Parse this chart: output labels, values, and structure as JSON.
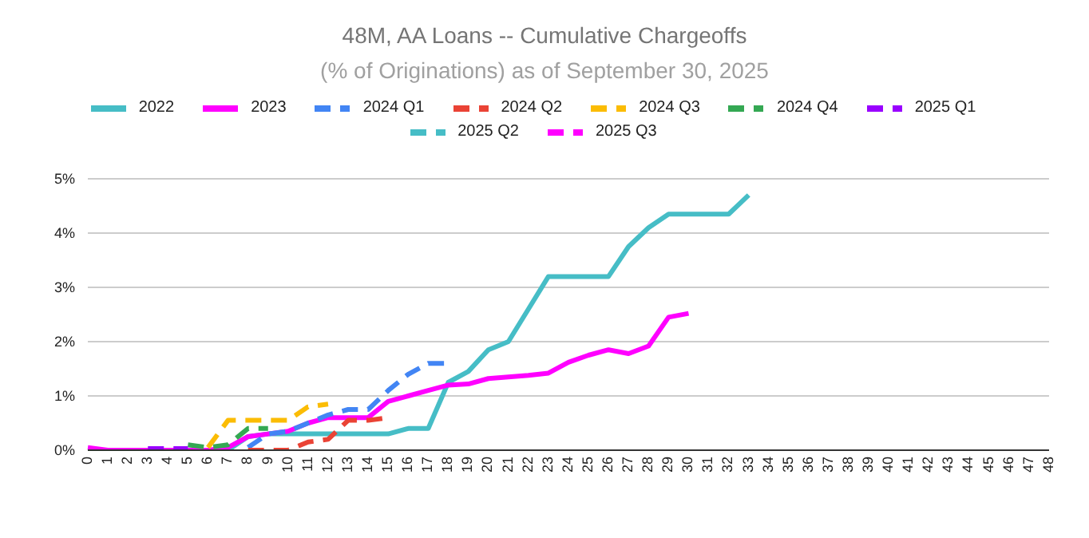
{
  "chart_data": {
    "type": "line",
    "title": "48M, AA Loans -- Cumulative Chargeoffs",
    "subtitle": "(% of Originations) as of September 30, 2025",
    "categories": [
      "0",
      "1",
      "2",
      "3",
      "4",
      "5",
      "6",
      "7",
      "8",
      "9",
      "10",
      "11",
      "12",
      "13",
      "14",
      "15",
      "16",
      "17",
      "18",
      "19",
      "20",
      "21",
      "22",
      "23",
      "24",
      "25",
      "26",
      "27",
      "28",
      "29",
      "30",
      "31",
      "32",
      "33",
      "34",
      "35",
      "36",
      "37",
      "38",
      "39",
      "40",
      "41",
      "42",
      "43",
      "44",
      "45",
      "46",
      "47",
      "48"
    ],
    "ylim": [
      0,
      5
    ],
    "yticks": [
      {
        "value": 0,
        "label": "0%"
      },
      {
        "value": 1,
        "label": "1%"
      },
      {
        "value": 2,
        "label": "2%"
      },
      {
        "value": 3,
        "label": "3%"
      },
      {
        "value": 4,
        "label": "4%"
      },
      {
        "value": 5,
        "label": "5%"
      }
    ],
    "grid": "y",
    "legend": "top",
    "marker": "none",
    "series": [
      {
        "name": "2022",
        "color": "#46bdc6",
        "line_style": "solid",
        "values": [
          null,
          null,
          null,
          null,
          null,
          null,
          null,
          0,
          0.25,
          0.3,
          0.3,
          0.3,
          0.3,
          0.3,
          0.3,
          0.3,
          0.4,
          0.4,
          1.25,
          1.45,
          1.85,
          2.0,
          2.6,
          3.2,
          3.2,
          3.2,
          3.2,
          3.75,
          4.1,
          4.35,
          4.35,
          4.35,
          4.35,
          4.7,
          null,
          null,
          null,
          null,
          null,
          null,
          null,
          null,
          null,
          null,
          null,
          null,
          null,
          null,
          null
        ]
      },
      {
        "name": "2023",
        "color": "#ff00ff",
        "line_style": "solid",
        "values": [
          0.05,
          0,
          0,
          0,
          0,
          0,
          0,
          0.05,
          0.25,
          0.3,
          0.35,
          0.5,
          0.6,
          0.6,
          0.6,
          0.9,
          1.0,
          1.1,
          1.2,
          1.22,
          1.32,
          1.35,
          1.38,
          1.42,
          1.62,
          1.75,
          1.85,
          1.78,
          1.92,
          2.45,
          2.52,
          null,
          null,
          null,
          null,
          null,
          null,
          null,
          null,
          null,
          null,
          null,
          null,
          null,
          null,
          null,
          null,
          null,
          null
        ]
      },
      {
        "name": "2024 Q1",
        "color": "#4285f4",
        "line_style": "dashed",
        "values": [
          null,
          null,
          null,
          null,
          null,
          null,
          null,
          null,
          0.05,
          0.3,
          0.35,
          0.5,
          0.65,
          0.75,
          0.75,
          1.1,
          1.4,
          1.6,
          1.6,
          null,
          null,
          null,
          null,
          null,
          null,
          null,
          null,
          null,
          null,
          null,
          null,
          null,
          null,
          null,
          null,
          null,
          null,
          null,
          null,
          null,
          null,
          null,
          null,
          null,
          null,
          null,
          null,
          null,
          null
        ]
      },
      {
        "name": "2024 Q2",
        "color": "#ea4335",
        "line_style": "dashed",
        "values": [
          null,
          null,
          null,
          null,
          null,
          null,
          null,
          null,
          0,
          0,
          0,
          0.15,
          0.2,
          0.55,
          0.55,
          0.6,
          null,
          null,
          null,
          null,
          null,
          null,
          null,
          null,
          null,
          null,
          null,
          null,
          null,
          null,
          null,
          null,
          null,
          null,
          null,
          null,
          null,
          null,
          null,
          null,
          null,
          null,
          null,
          null,
          null,
          null,
          null,
          null,
          null
        ]
      },
      {
        "name": "2024 Q3",
        "color": "#fbbc04",
        "line_style": "dashed",
        "values": [
          null,
          null,
          null,
          null,
          null,
          null,
          0.05,
          0.55,
          0.55,
          0.55,
          0.55,
          0.8,
          0.85,
          null,
          null,
          null,
          null,
          null,
          null,
          null,
          null,
          null,
          null,
          null,
          null,
          null,
          null,
          null,
          null,
          null,
          null,
          null,
          null,
          null,
          null,
          null,
          null,
          null,
          null,
          null,
          null,
          null,
          null,
          null,
          null,
          null,
          null,
          null,
          null
        ]
      },
      {
        "name": "2024 Q4",
        "color": "#34a853",
        "line_style": "dashed",
        "values": [
          null,
          null,
          null,
          null,
          null,
          0.1,
          0.05,
          0.1,
          0.4,
          0.4,
          null,
          null,
          null,
          null,
          null,
          null,
          null,
          null,
          null,
          null,
          null,
          null,
          null,
          null,
          null,
          null,
          null,
          null,
          null,
          null,
          null,
          null,
          null,
          null,
          null,
          null,
          null,
          null,
          null,
          null,
          null,
          null,
          null,
          null,
          null,
          null,
          null,
          null,
          null
        ]
      },
      {
        "name": "2025 Q1",
        "color": "#9900ff",
        "line_style": "dashed",
        "values": [
          null,
          null,
          null,
          0.03,
          0.03,
          0.03,
          null,
          null,
          null,
          null,
          null,
          null,
          null,
          null,
          null,
          null,
          null,
          null,
          null,
          null,
          null,
          null,
          null,
          null,
          null,
          null,
          null,
          null,
          null,
          null,
          null,
          null,
          null,
          null,
          null,
          null,
          null,
          null,
          null,
          null,
          null,
          null,
          null,
          null,
          null,
          null,
          null,
          null,
          null
        ]
      },
      {
        "name": "2025 Q2",
        "color": "#46bdc6",
        "line_style": "dashed",
        "values": [
          null,
          null,
          null,
          null,
          null,
          null,
          null,
          null,
          null,
          null,
          null,
          null,
          null,
          null,
          null,
          null,
          null,
          null,
          null,
          null,
          null,
          null,
          null,
          null,
          null,
          null,
          null,
          null,
          null,
          null,
          null,
          null,
          null,
          null,
          null,
          null,
          null,
          null,
          null,
          null,
          null,
          null,
          null,
          null,
          null,
          null,
          null,
          null,
          null
        ]
      },
      {
        "name": "2025 Q3",
        "color": "#ff00ff",
        "line_style": "dashed",
        "values": [
          null,
          null,
          null,
          null,
          null,
          null,
          null,
          null,
          null,
          null,
          null,
          null,
          null,
          null,
          null,
          null,
          null,
          null,
          null,
          null,
          null,
          null,
          null,
          null,
          null,
          null,
          null,
          null,
          null,
          null,
          null,
          null,
          null,
          null,
          null,
          null,
          null,
          null,
          null,
          null,
          null,
          null,
          null,
          null,
          null,
          null,
          null,
          null,
          null
        ]
      }
    ]
  }
}
